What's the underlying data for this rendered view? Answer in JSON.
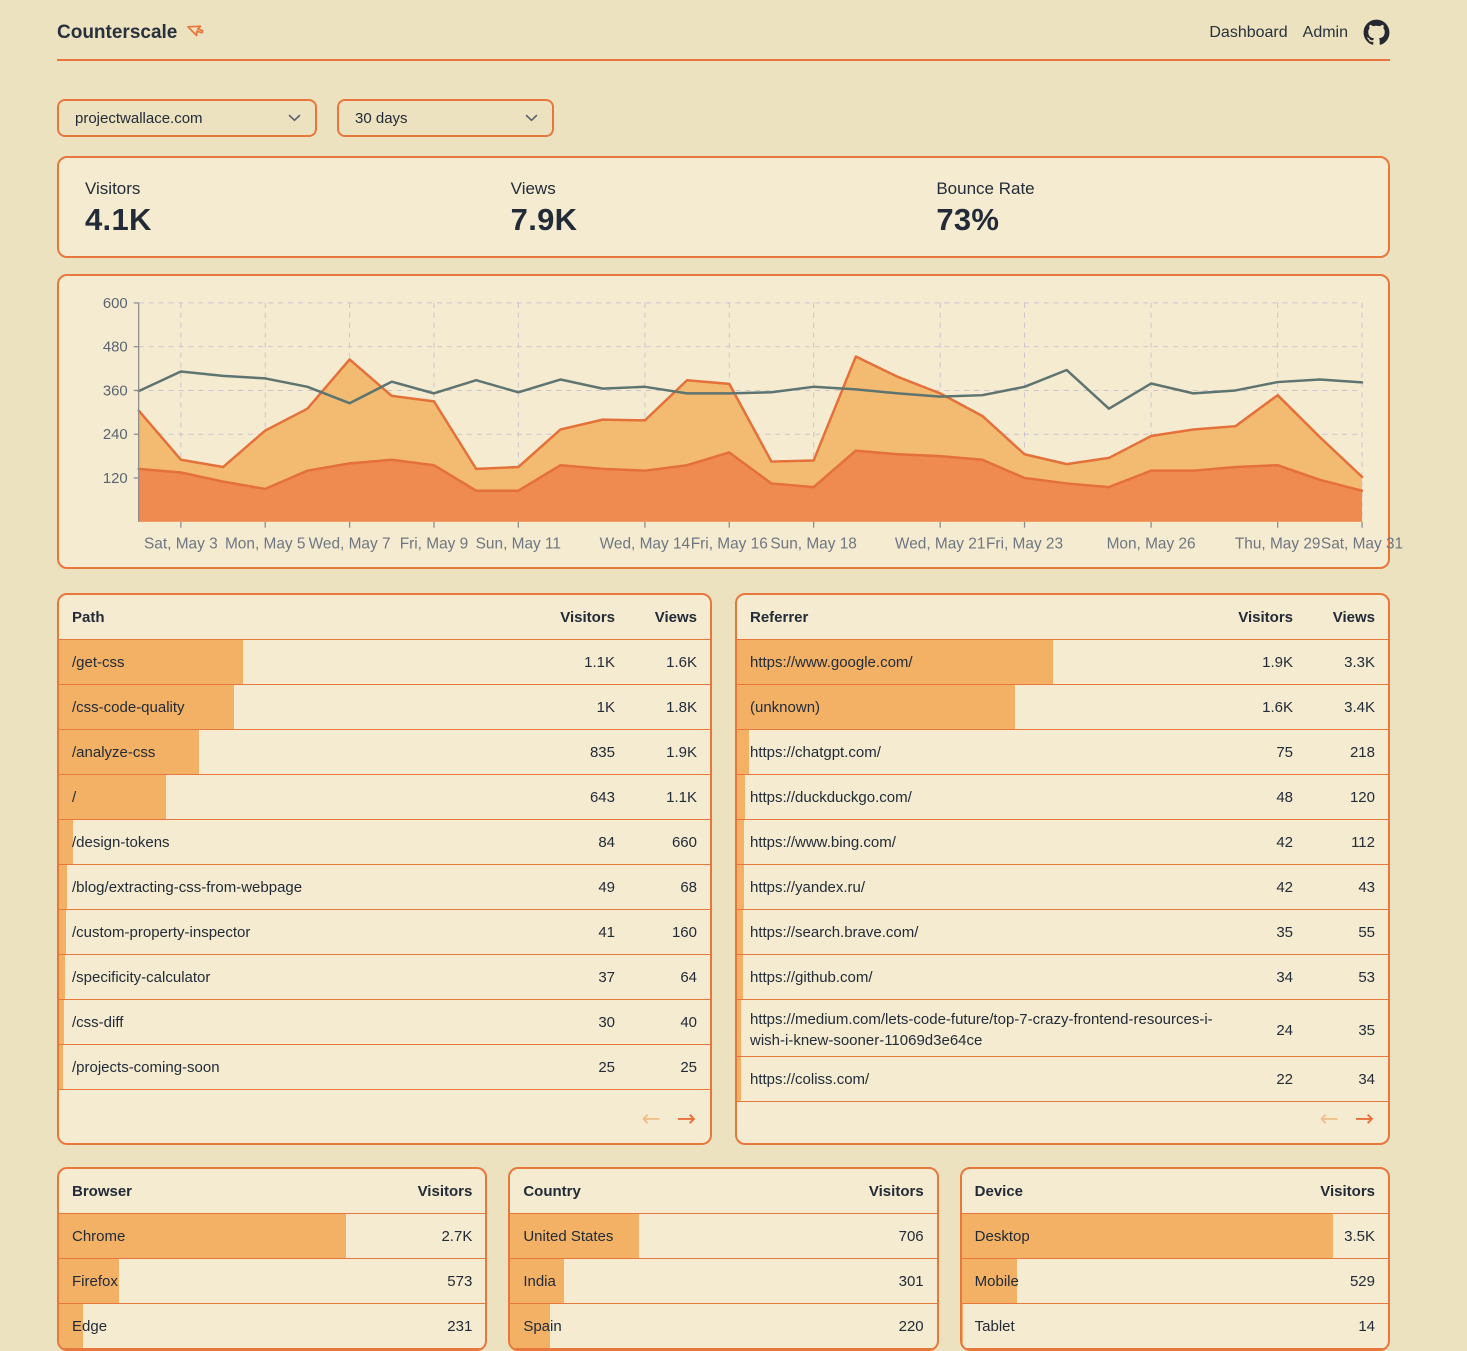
{
  "header": {
    "title": "Counterscale",
    "nav": [
      {
        "label": "Dashboard"
      },
      {
        "label": "Admin"
      }
    ]
  },
  "filters": {
    "site": "projectwallace.com",
    "range": "30 days"
  },
  "stats": [
    {
      "label": "Visitors",
      "value": "4.1K"
    },
    {
      "label": "Views",
      "value": "7.9K"
    },
    {
      "label": "Bounce Rate",
      "value": "73%"
    }
  ],
  "chart_data": {
    "type": "area",
    "title": "",
    "xlabel": "",
    "ylabel": "",
    "ylim": [
      0,
      600
    ],
    "yticks": [
      120,
      240,
      360,
      480,
      600
    ],
    "grid": "dashed",
    "legend": "none",
    "x": [
      "May 2",
      "May 3",
      "May 4",
      "May 5",
      "May 6",
      "May 7",
      "May 8",
      "May 9",
      "May 10",
      "May 11",
      "May 12",
      "May 13",
      "May 14",
      "May 15",
      "May 16",
      "May 17",
      "May 18",
      "May 19",
      "May 20",
      "May 21",
      "May 22",
      "May 23",
      "May 24",
      "May 25",
      "May 26",
      "May 27",
      "May 28",
      "May 29",
      "May 30",
      "May 31"
    ],
    "xticks": [
      {
        "index": 1,
        "label": "Sat, May 3"
      },
      {
        "index": 3,
        "label": "Mon, May 5"
      },
      {
        "index": 5,
        "label": "Wed, May 7"
      },
      {
        "index": 7,
        "label": "Fri, May 9"
      },
      {
        "index": 9,
        "label": "Sun, May 11"
      },
      {
        "index": 12,
        "label": "Wed, May 14"
      },
      {
        "index": 14,
        "label": "Fri, May 16"
      },
      {
        "index": 16,
        "label": "Sun, May 18"
      },
      {
        "index": 19,
        "label": "Wed, May 21"
      },
      {
        "index": 21,
        "label": "Fri, May 23"
      },
      {
        "index": 24,
        "label": "Mon, May 26"
      },
      {
        "index": 27,
        "label": "Thu, May 29"
      },
      {
        "index": 29,
        "label": "Sat, May 31"
      }
    ],
    "series": [
      {
        "name": "views",
        "type": "area",
        "color": "#F2BB71",
        "stroke": "#E4703A",
        "values": [
          305,
          170,
          150,
          250,
          310,
          445,
          345,
          330,
          145,
          150,
          253,
          280,
          278,
          388,
          378,
          165,
          168,
          453,
          397,
          352,
          290,
          185,
          158,
          175,
          235,
          253,
          262,
          347,
          232,
          123
        ]
      },
      {
        "name": "visitors",
        "type": "area",
        "color": "#EF8A51",
        "stroke": "#E4703A",
        "values": [
          145,
          135,
          110,
          90,
          140,
          160,
          170,
          155,
          85,
          85,
          155,
          145,
          140,
          155,
          190,
          105,
          95,
          195,
          185,
          180,
          170,
          120,
          105,
          95,
          140,
          140,
          150,
          155,
          115,
          85
        ]
      },
      {
        "name": "trend-line",
        "type": "line",
        "color": "#5D7470",
        "values": [
          358,
          412,
          400,
          393,
          370,
          325,
          384,
          352,
          388,
          355,
          390,
          365,
          370,
          352,
          352,
          355,
          370,
          363,
          352,
          343,
          347,
          370,
          416,
          310,
          379,
          352,
          360,
          383,
          390,
          382
        ]
      }
    ]
  },
  "tables": {
    "path": {
      "title_col": "Path",
      "cols": [
        "Visitors",
        "Views"
      ],
      "pagination": true,
      "rows": [
        {
          "label": "/get-css",
          "values": [
            "1.1K",
            "1.6K"
          ],
          "bar_pct": 28.2
        },
        {
          "label": "/css-code-quality",
          "values": [
            "1K",
            "1.8K"
          ],
          "bar_pct": 26.9
        },
        {
          "label": "/analyze-css",
          "values": [
            "835",
            "1.9K"
          ],
          "bar_pct": 21.5
        },
        {
          "label": "/",
          "values": [
            "643",
            "1.1K"
          ],
          "bar_pct": 16.4
        },
        {
          "label": "/design-tokens",
          "values": [
            "84",
            "660"
          ],
          "bar_pct": 2.1
        },
        {
          "label": "/blog/extracting-css-from-webpage",
          "values": [
            "49",
            "68"
          ],
          "bar_pct": 1.2
        },
        {
          "label": "/custom-property-inspector",
          "values": [
            "41",
            "160"
          ],
          "bar_pct": 1.0
        },
        {
          "label": "/specificity-calculator",
          "values": [
            "37",
            "64"
          ],
          "bar_pct": 0.9
        },
        {
          "label": "/css-diff",
          "values": [
            "30",
            "40"
          ],
          "bar_pct": 0.75
        },
        {
          "label": "/projects-coming-soon",
          "values": [
            "25",
            "25"
          ],
          "bar_pct": 0.6
        }
      ]
    },
    "referrer": {
      "title_col": "Referrer",
      "cols": [
        "Visitors",
        "Views"
      ],
      "pagination": true,
      "rows": [
        {
          "label": "https://www.google.com/",
          "values": [
            "1.9K",
            "3.3K"
          ],
          "bar_pct": 48.6
        },
        {
          "label": "(unknown)",
          "values": [
            "1.6K",
            "3.4K"
          ],
          "bar_pct": 42.7
        },
        {
          "label": "https://chatgpt.com/",
          "values": [
            "75",
            "218"
          ],
          "bar_pct": 1.8
        },
        {
          "label": "https://duckduckgo.com/",
          "values": [
            "48",
            "120"
          ],
          "bar_pct": 1.2
        },
        {
          "label": "https://www.bing.com/",
          "values": [
            "42",
            "112"
          ],
          "bar_pct": 1.05
        },
        {
          "label": "https://yandex.ru/",
          "values": [
            "42",
            "43"
          ],
          "bar_pct": 1.05
        },
        {
          "label": "https://search.brave.com/",
          "values": [
            "35",
            "55"
          ],
          "bar_pct": 0.9
        },
        {
          "label": "https://github.com/",
          "values": [
            "34",
            "53"
          ],
          "bar_pct": 0.85
        },
        {
          "label": "https://medium.com/lets-code-future/top-7-crazy-frontend-resources-i-wish-i-knew-sooner-11069d3e64ce",
          "values": [
            "24",
            "35"
          ],
          "bar_pct": 0.6
        },
        {
          "label": "https://coliss.com/",
          "values": [
            "22",
            "34"
          ],
          "bar_pct": 0.55
        }
      ]
    },
    "browser": {
      "title_col": "Browser",
      "cols": [
        "Visitors"
      ],
      "pagination": false,
      "rows": [
        {
          "label": "Chrome",
          "values": [
            "2.7K"
          ],
          "bar_pct": 67.4
        },
        {
          "label": "Firefox",
          "values": [
            "573"
          ],
          "bar_pct": 14.0
        },
        {
          "label": "Edge",
          "values": [
            "231"
          ],
          "bar_pct": 5.6
        }
      ]
    },
    "country": {
      "title_col": "Country",
      "cols": [
        "Visitors"
      ],
      "pagination": false,
      "rows": [
        {
          "label": "United States",
          "values": [
            "706"
          ],
          "bar_pct": 30.2
        },
        {
          "label": "India",
          "values": [
            "301"
          ],
          "bar_pct": 12.6
        },
        {
          "label": "Spain",
          "values": [
            "220"
          ],
          "bar_pct": 9.4
        }
      ]
    },
    "device": {
      "title_col": "Device",
      "cols": [
        "Visitors"
      ],
      "pagination": false,
      "rows": [
        {
          "label": "Desktop",
          "values": [
            "3.5K"
          ],
          "bar_pct": 87.0
        },
        {
          "label": "Mobile",
          "values": [
            "529"
          ],
          "bar_pct": 12.9
        },
        {
          "label": "Tablet",
          "values": [
            "14"
          ],
          "bar_pct": 0.35
        }
      ]
    }
  },
  "pagination": {
    "prev": "←",
    "next": "→"
  },
  "colors": {
    "accent": "#E8773D",
    "page_bg": "#EDE2C0",
    "card_bg": "#F5EBD1",
    "row_bar": "#F2B165",
    "area_views": "#F2BB71",
    "area_visitors": "#EF8A51",
    "area_stroke": "#E4703A",
    "trend_line": "#5D7470",
    "text": "#222B37"
  }
}
